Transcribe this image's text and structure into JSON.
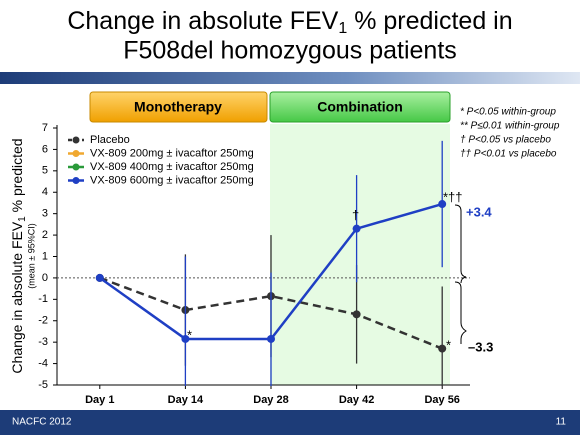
{
  "title_parts": [
    "Change in absolute FEV",
    "1",
    " % predicted in",
    "F508del homozygous patients"
  ],
  "phases": [
    "Monotherapy",
    "Combination"
  ],
  "footnotes": [
    "* P<0.05 within-group",
    "** P≤0.01 within-group",
    "† P<0.05 vs placebo",
    "†† P<0.01 vs placebo"
  ],
  "footer": {
    "left": "NACFC 2012",
    "page": "11"
  },
  "chart_data": {
    "type": "line",
    "ylabel": {
      "main": "Change in absolute FEV",
      "sub": "1",
      "rest": " % predicted",
      "note": "(mean ± 95%CI)"
    },
    "categories": [
      "Day 1",
      "Day 14",
      "Day 28",
      "Day 42",
      "Day 56"
    ],
    "ylim": [
      -5,
      7
    ],
    "yticks": [
      -5,
      -4,
      -3,
      -2,
      -1,
      0,
      1,
      2,
      3,
      4,
      5,
      6,
      7
    ],
    "series": [
      {
        "name": "Placebo",
        "color": "#333333",
        "dash": true,
        "values": [
          0,
          -1.5,
          -0.85,
          -1.7,
          -3.3
        ],
        "errors": [
          0,
          2.6,
          2.85,
          2.3,
          2.9
        ]
      },
      {
        "name": "VX-809 200mg ± ivacaftor 250mg",
        "color": "#f0a830",
        "values": [
          null,
          null,
          null,
          null,
          null
        ]
      },
      {
        "name": "VX-809 400mg ± ivacaftor 250mg",
        "color": "#2a9a3a",
        "values": [
          null,
          null,
          null,
          null,
          null
        ]
      },
      {
        "name": "VX-809 600mg ± ivacaftor 250mg",
        "color": "#1f3fc4",
        "values": [
          0,
          -2.85,
          -2.85,
          2.3,
          3.45
        ],
        "errors": [
          0,
          3.85,
          3.1,
          2.5,
          2.95
        ]
      }
    ],
    "annotations": [
      "*",
      "†",
      "*††",
      "*",
      "+3.4",
      "–3.3"
    ]
  }
}
